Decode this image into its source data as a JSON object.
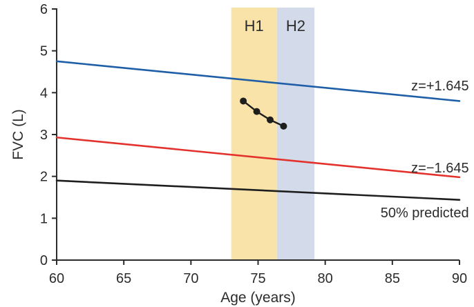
{
  "figure": {
    "background_color": "#ffffff",
    "text_color": "#2b2b2b",
    "axis_color": "#2b2b2b"
  },
  "chart_data": {
    "type": "line",
    "title": "",
    "xlabel": "Age (years)",
    "ylabel": "FVC (L)",
    "xlim": [
      60,
      90
    ],
    "ylim": [
      0,
      6
    ],
    "xticks": [
      60,
      65,
      70,
      75,
      80,
      85,
      90
    ],
    "yticks": [
      0,
      1,
      2,
      3,
      4,
      5,
      6
    ],
    "grid": false,
    "legend_position": "inline-right-labels",
    "bands": [
      {
        "label": "H1",
        "x_from": 73.0,
        "x_to": 76.4,
        "color": "#fae3a8"
      },
      {
        "label": "H2",
        "x_from": 76.4,
        "x_to": 79.2,
        "color": "#d3dbea"
      }
    ],
    "series": [
      {
        "name": "z-plus-1645-upper-limit",
        "label": "z=+1.645",
        "color": "#1e5ea7",
        "markers": false,
        "x": [
          60,
          90
        ],
        "y": [
          4.75,
          3.8
        ],
        "label_at": {
          "x": 90.7,
          "y": 4.17
        }
      },
      {
        "name": "z-minus-1645-lower-limit",
        "label": "z=−1.645",
        "color": "#e3312b",
        "markers": false,
        "x": [
          60,
          90
        ],
        "y": [
          2.93,
          1.98
        ],
        "label_at": {
          "x": 90.7,
          "y": 2.21
        }
      },
      {
        "name": "fifty-percent-predicted",
        "label": "50% predicted",
        "color": "#1e1e1e",
        "markers": false,
        "x": [
          60,
          90
        ],
        "y": [
          1.9,
          1.44
        ],
        "label_at": {
          "x": 90.7,
          "y": 1.14
        }
      },
      {
        "name": "patient-fvc-trajectory",
        "label": "",
        "color": "#1e1e1e",
        "markers": true,
        "x": [
          73.9,
          74.9,
          75.9,
          76.9
        ],
        "y": [
          3.8,
          3.55,
          3.35,
          3.2
        ]
      }
    ]
  }
}
